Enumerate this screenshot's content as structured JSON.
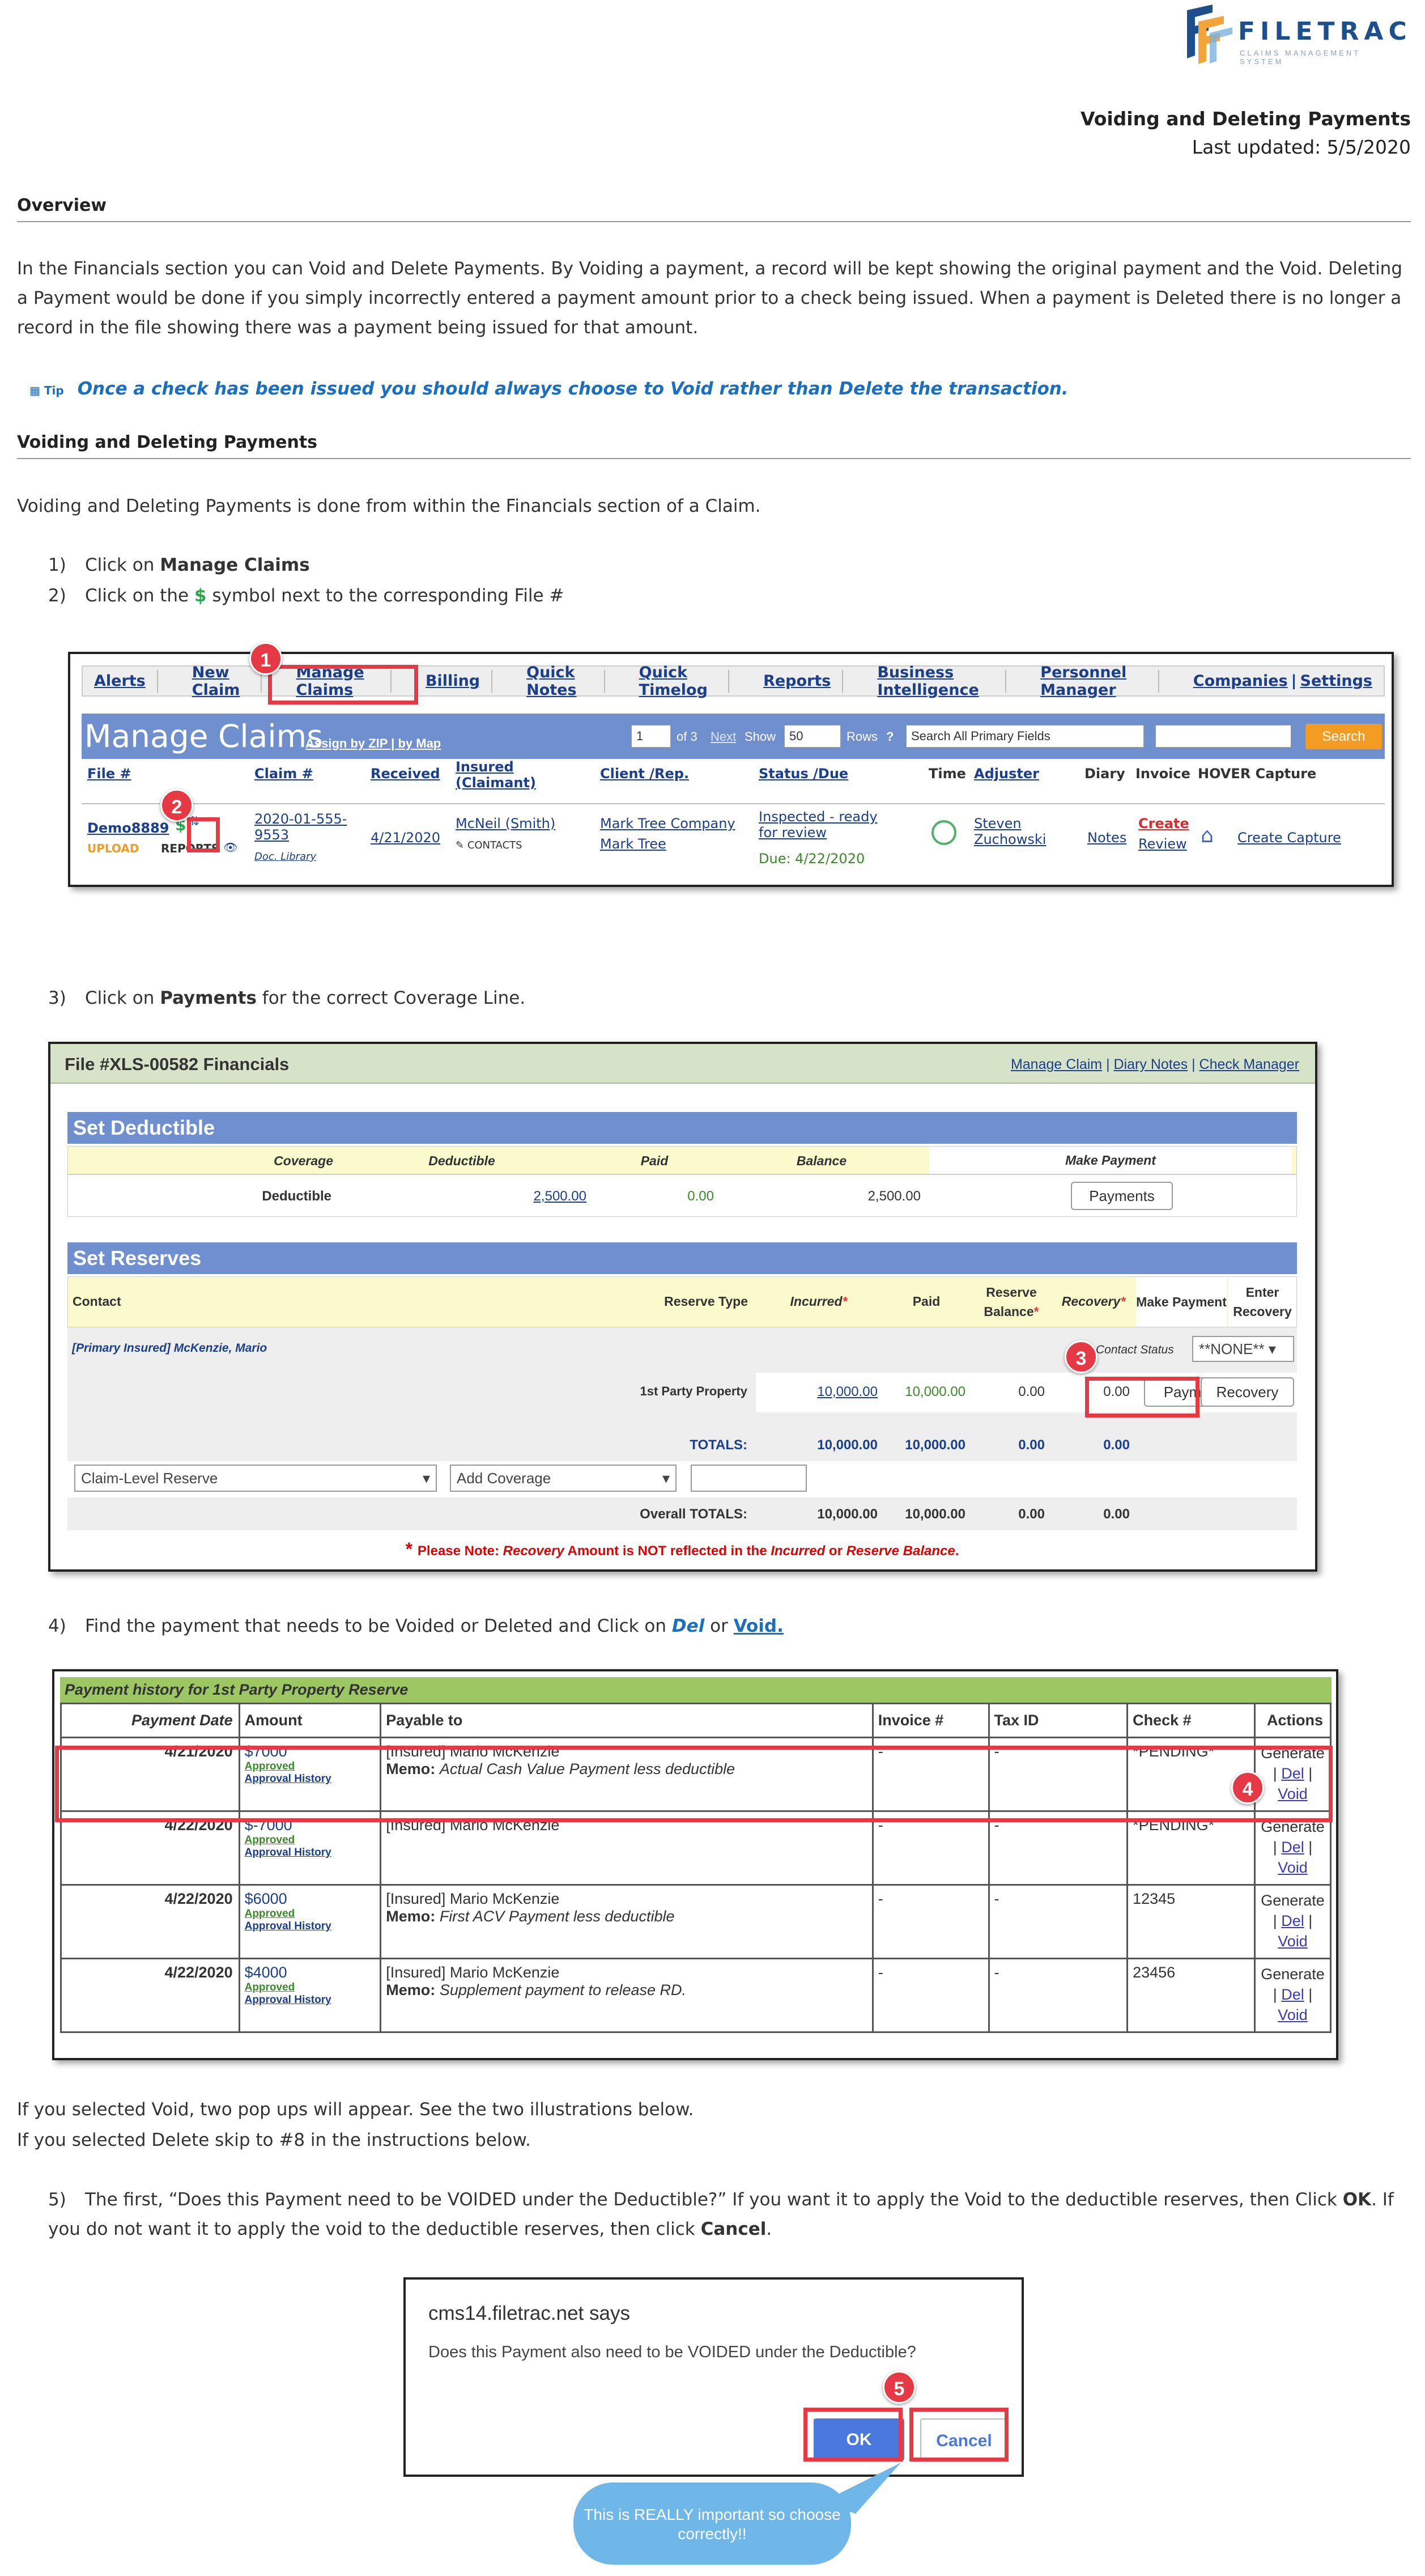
{
  "logo": {
    "word": "FILETRAC",
    "tagline": "CLAIMS MANAGEMENT SYSTEM"
  },
  "header": {
    "title": "Voiding and Deleting Payments",
    "updated": "Last updated: 5/5/2020"
  },
  "overview": {
    "heading": "Overview",
    "text": "In the Financials section you can Void and Delete Payments. By Voiding a payment, a record will be kept showing the original payment and the Void. Deleting a Payment would be done if you simply incorrectly entered a payment amount prior to a check being issued. When a payment is Deleted there is no longer a record in the file showing there was a payment being issued for that amount."
  },
  "tip": {
    "label": "Tip",
    "text": "Once a check has been issued you should always choose to Void rather than Delete the transaction."
  },
  "section2": {
    "heading": "Voiding and Deleting Payments",
    "intro": "Voiding and Deleting Payments is done from within the Financials section of a Claim."
  },
  "steps": {
    "s1": {
      "num": "1)",
      "pre": "Click on ",
      "bold": "Manage Claims"
    },
    "s2": {
      "num": "2)",
      "pre": "Click on the ",
      "sym": "$",
      "post": " symbol next to the corresponding File #"
    },
    "s3": {
      "num": "3)",
      "pre": "Click on ",
      "bold": "Payments",
      "post": " for the correct Coverage Line."
    },
    "s4": {
      "num": "4)",
      "pre": "Find the payment that needs to be Voided or Deleted and Click on ",
      "del": "Del",
      "mid": " or ",
      "void": "Void."
    },
    "s5": {
      "num": "5)",
      "pre": "The first, “Does this Payment need to be VOIDED under the Deductible?” If you want it to apply the Void to the deductible reserves, then Click ",
      "ok": "OK",
      "mid": ". If you do not want it to apply the void to the deductible reserves, then click ",
      "cancel": "Cancel",
      "end": "."
    }
  },
  "after_table": {
    "line1": "If you selected Void, two pop ups will appear. See the two illustrations below.",
    "line2": "If you selected Delete skip to #8 in the instructions below."
  },
  "badges": [
    "1",
    "2",
    "3",
    "4",
    "5"
  ],
  "manage_claims": {
    "tabs": [
      "Alerts",
      "New Claim",
      "Manage Claims",
      "Billing",
      "Quick Notes",
      "Quick Timelog",
      "Reports",
      "Business Intelligence",
      "Personnel Manager",
      "Companies",
      "Settings"
    ],
    "title": "Manage Claims",
    "links": "Assign by ZIP | by Map",
    "page_sel": "1",
    "of": "of 3",
    "next": "Next",
    "show": "Show",
    "rows_sel": "50",
    "rows": "Rows",
    "search_field": "Search All Primary Fields",
    "search_btn": "Search",
    "headers": [
      "File #",
      "Claim #",
      "Received",
      "Insured (Claimant)",
      "Client /Rep.",
      "Status /Due",
      "Time",
      "Adjuster",
      "Diary",
      "Invoice",
      "HOVER Capture"
    ],
    "row": {
      "file": "Demo8889",
      "upload": "UPLOAD",
      "reports": "REPORTS",
      "claim": "2020-01-555-9553",
      "doclib": "Doc. Library",
      "received": "4/21/2020",
      "insured": "McNeil (Smith)",
      "contacts": "CONTACTS",
      "client": "Mark Tree Company",
      "rep": "Mark Tree",
      "status": "Inspected - ready for review",
      "due": "Due: 4/22/2020",
      "adjuster": "Steven Zuchowski",
      "diary": "Notes",
      "invoice_create": "Create",
      "invoice_review": "Review",
      "hover": "Create Capture"
    }
  },
  "financials": {
    "title": "File #XLS-00582 Financials",
    "links": [
      "Manage Claim",
      "Diary Notes",
      "Check Manager"
    ],
    "deductible_bar": "Set Deductible",
    "ded_headers": [
      "Coverage",
      "Deductible",
      "Paid",
      "Balance",
      "Make Payment"
    ],
    "ded_row": {
      "coverage": "Deductible",
      "deductible": "2,500.00",
      "paid": "0.00",
      "balance": "2,500.00",
      "btn": "Payments"
    },
    "reserves_bar": "Set Reserves",
    "res_headers": {
      "contact": "Contact",
      "type": "Reserve Type",
      "incurred": "Incurred",
      "paid": "Paid",
      "rbal": "Reserve Balance",
      "recovery": "Recovery",
      "make": "Make Payment",
      "enter": "Enter Recovery"
    },
    "insured": "[Primary Insured] McKenzie, Mario",
    "contact_status": "Contact Status",
    "status_sel": "**NONE**",
    "row": {
      "type": "1st Party Property",
      "incurred": "10,000.00",
      "paid": "10,000.00",
      "rbal": "0.00",
      "recovery": "0.00",
      "pay_btn": "Payments",
      "rec_btn": "Recovery"
    },
    "totals": {
      "label": "TOTALS:",
      "incurred": "10,000.00",
      "paid": "10,000.00",
      "rbal": "0.00",
      "recovery": "0.00"
    },
    "dd1": "Claim-Level Reserve",
    "dd2": "Add Coverage",
    "overall": {
      "label": "Overall TOTALS:",
      "incurred": "10,000.00",
      "paid": "10,000.00",
      "rbal": "0.00",
      "recovery": "0.00"
    },
    "note": {
      "pre": "Please Note: ",
      "rec": "Recovery",
      "mid": " Amount is NOT reflected in the ",
      "inc": "Incurred",
      "or": " or ",
      "rb": "Reserve Balance",
      "end": "."
    }
  },
  "payment_history": {
    "title": "Payment history for 1st Party Property Reserve",
    "headers": [
      "Payment Date",
      "Amount",
      "Payable to",
      "Invoice #",
      "Tax ID",
      "Check #",
      "Actions"
    ],
    "approved": "Approved",
    "approval_history": "Approval History",
    "memo_label": "Memo:",
    "generate": "Generate",
    "del": "Del",
    "void": "Void",
    "rows": [
      {
        "date": "4/21/2020",
        "amount": "$7000",
        "payee": "[Insured] Mario McKenzie",
        "memo": "Actual Cash Value Payment less deductible",
        "invoice": "-",
        "tax": "-",
        "check": "*PENDING*"
      },
      {
        "date": "4/22/2020",
        "amount": "$-7000",
        "payee": "[Insured] Mario McKenzie",
        "memo": "",
        "invoice": "-",
        "tax": "-",
        "check": "*PENDING*"
      },
      {
        "date": "4/22/2020",
        "amount": "$6000",
        "payee": "[Insured] Mario McKenzie",
        "memo": "First ACV Payment less deductible",
        "invoice": "-",
        "tax": "-",
        "check": "12345"
      },
      {
        "date": "4/22/2020",
        "amount": "$4000",
        "payee": "[Insured] Mario McKenzie",
        "memo": "Supplement payment to release RD.",
        "invoice": "-",
        "tax": "-",
        "check": "23456"
      }
    ]
  },
  "dialog": {
    "host": "cms14.filetrac.net says",
    "question": "Does this Payment also need to be VOIDED under the Deductible?",
    "ok": "OK",
    "cancel": "Cancel"
  },
  "callout": "This is REALLY important so choose correctly!!"
}
